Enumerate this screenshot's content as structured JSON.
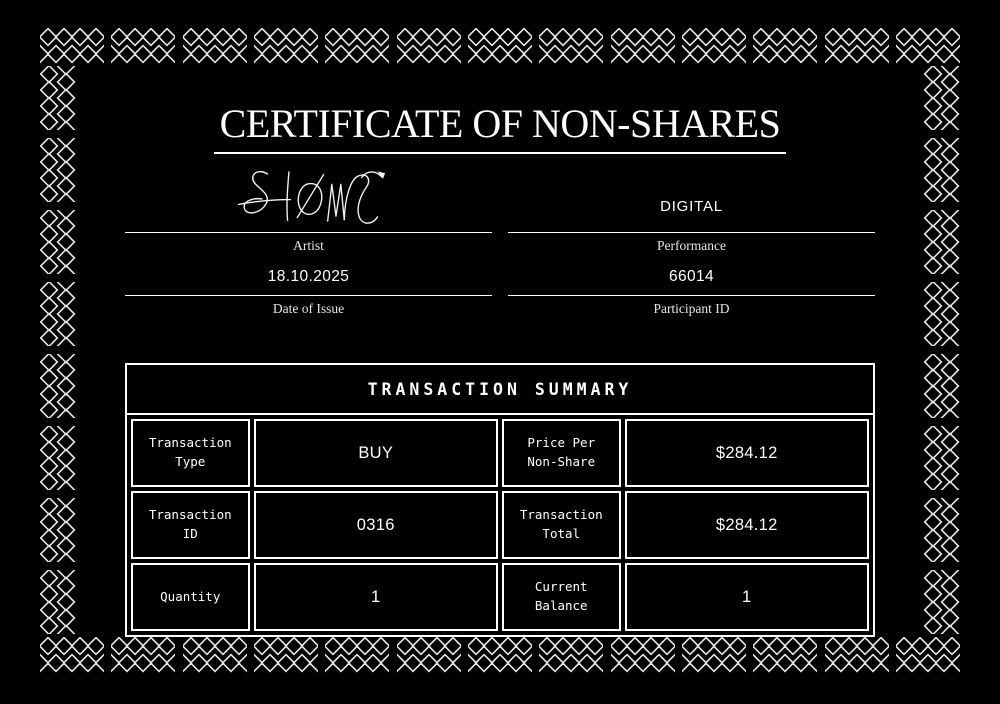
{
  "colors": {
    "background": "#000000",
    "foreground": "#ffffff",
    "lattice": "#e6e6e6"
  },
  "certificate": {
    "title": "CERTIFICATE OF NON-SHARES",
    "artist_label": "Artist",
    "performance_value": "DIGITAL",
    "performance_label": "Performance",
    "date_value": "18.10.2025",
    "date_label": "Date of Issue",
    "participant_value": "66014",
    "participant_label": "Participant ID",
    "signature_name": "artist-signature-scribble"
  },
  "summary": {
    "title": "TRANSACTION SUMMARY",
    "r1_label1": "Transaction Type",
    "r1_value1": "BUY",
    "r1_label2": "Price Per Non-Share",
    "r1_value2": "$284.12",
    "r2_label1": "Transaction ID",
    "r2_value1": "0316",
    "r2_label2": "Transaction Total",
    "r2_value2": "$284.12",
    "r3_label1": "Quantity",
    "r3_value1": "1",
    "r3_label2": "Current Balance",
    "r3_value2": "1"
  }
}
